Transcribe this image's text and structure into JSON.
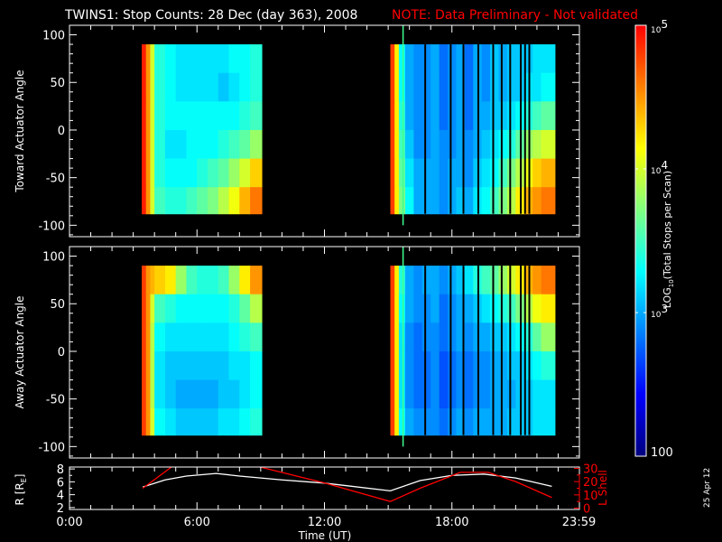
{
  "title": {
    "main": "TWINS1: Stop Counts: 28 Dec (day 363), 2008",
    "note": "NOTE: Data Preliminary - Not validated",
    "note_color": "#ff0000"
  },
  "date_stamp": "25 Apr 12",
  "chart_data": [
    {
      "type": "heatmap",
      "ylabel": "Toward Actuator Angle",
      "xlim": [
        0,
        24
      ],
      "ylim": [
        -112,
        110
      ],
      "yticks": [
        -100,
        -50,
        0,
        50,
        100
      ],
      "angle_edges": [
        90,
        60,
        30,
        0,
        -30,
        -60,
        -88
      ],
      "blocks": [
        {
          "time_edges": [
            3.4,
            3.6,
            3.8,
            4.0,
            4.5,
            5.0,
            5.5,
            6.0,
            6.5,
            7.0,
            7.5,
            8.0,
            8.5,
            9.05
          ],
          "log10_counts": [
            [
              4.9,
              4.5,
              4.0,
              3.4,
              3.3,
              3.2,
              3.2,
              3.2,
              3.2,
              3.2,
              3.3,
              3.3,
              3.4
            ],
            [
              4.9,
              4.5,
              4.0,
              3.4,
              3.3,
              3.2,
              3.2,
              3.2,
              3.2,
              3.1,
              3.2,
              3.3,
              3.4
            ],
            [
              4.9,
              4.5,
              4.0,
              3.4,
              3.3,
              3.3,
              3.3,
              3.3,
              3.3,
              3.3,
              3.3,
              3.4,
              3.5
            ],
            [
              4.9,
              4.5,
              4.0,
              3.4,
              3.2,
              3.2,
              3.3,
              3.3,
              3.3,
              3.4,
              3.5,
              3.6,
              3.8
            ],
            [
              4.9,
              4.5,
              4.0,
              3.4,
              3.3,
              3.3,
              3.3,
              3.4,
              3.5,
              3.6,
              3.8,
              4.0,
              4.3
            ],
            [
              4.9,
              4.5,
              4.0,
              3.5,
              3.4,
              3.4,
              3.5,
              3.6,
              3.7,
              3.9,
              4.1,
              4.4,
              4.6
            ]
          ]
        },
        {
          "time_edges": [
            15.1,
            15.3,
            15.5,
            15.8,
            16.2,
            16.6,
            17.0,
            17.4,
            17.8,
            18.2,
            18.6,
            19.0,
            19.4,
            19.8,
            20.2,
            20.6,
            21.0,
            21.4,
            21.8,
            22.2,
            22.85
          ],
          "log10_counts": [
            [
              4.8,
              4.2,
              3.3,
              3.0,
              2.9,
              2.9,
              3.0,
              2.8,
              2.9,
              3.0,
              2.8,
              3.0,
              2.9,
              3.1,
              3.0,
              3.1,
              3.1,
              3.1,
              3.2,
              3.2
            ],
            [
              4.8,
              4.2,
              3.3,
              3.0,
              2.9,
              2.9,
              3.0,
              2.8,
              2.9,
              3.0,
              2.8,
              3.0,
              2.9,
              3.1,
              3.0,
              3.1,
              3.1,
              3.2,
              3.2,
              3.3
            ],
            [
              4.8,
              4.2,
              3.4,
              3.0,
              2.9,
              2.9,
              3.0,
              2.8,
              2.9,
              3.0,
              2.8,
              3.0,
              3.0,
              3.1,
              3.1,
              3.2,
              3.3,
              3.4,
              3.5,
              3.6
            ],
            [
              4.8,
              4.2,
              3.5,
              3.1,
              2.9,
              2.9,
              3.0,
              2.9,
              2.9,
              3.0,
              2.9,
              3.0,
              3.1,
              3.2,
              3.3,
              3.4,
              3.6,
              3.8,
              3.9,
              4.0
            ],
            [
              4.8,
              4.2,
              3.6,
              3.2,
              3.0,
              3.0,
              3.0,
              2.9,
              3.0,
              3.0,
              2.9,
              3.1,
              3.2,
              3.3,
              3.5,
              3.7,
              3.9,
              4.1,
              4.3,
              4.4
            ],
            [
              4.8,
              4.2,
              3.7,
              3.3,
              3.0,
              3.0,
              3.0,
              2.9,
              3.0,
              3.1,
              3.0,
              3.2,
              3.3,
              3.5,
              3.7,
              3.9,
              4.2,
              4.4,
              4.5,
              4.6
            ]
          ]
        }
      ],
      "data_gaps_hours": [
        16.7,
        17.9,
        18.5,
        19.2,
        19.9,
        20.3,
        20.7,
        21.2,
        21.4,
        21.6
      ],
      "highlight_line_hours": 15.7
    },
    {
      "type": "heatmap",
      "ylabel": "Away Actuator Angle",
      "xlim": [
        0,
        24
      ],
      "ylim": [
        -112,
        110
      ],
      "yticks": [
        -100,
        -50,
        0,
        50,
        100
      ],
      "angle_edges": [
        90,
        60,
        30,
        0,
        -30,
        -60,
        -88
      ],
      "blocks": [
        {
          "time_edges": [
            3.4,
            3.6,
            3.8,
            4.0,
            4.5,
            5.0,
            5.5,
            6.0,
            6.5,
            7.0,
            7.5,
            8.0,
            8.5,
            9.05
          ],
          "log10_counts": [
            [
              4.8,
              4.5,
              4.4,
              4.3,
              4.2,
              3.8,
              3.5,
              3.4,
              3.4,
              3.5,
              3.8,
              4.2,
              4.5
            ],
            [
              4.8,
              4.5,
              4.0,
              3.5,
              3.4,
              3.3,
              3.3,
              3.3,
              3.3,
              3.3,
              3.4,
              3.6,
              3.9
            ],
            [
              4.8,
              4.5,
              3.9,
              3.3,
              3.2,
              3.2,
              3.2,
              3.2,
              3.2,
              3.2,
              3.3,
              3.4,
              3.5
            ],
            [
              4.8,
              4.5,
              3.9,
              3.2,
              3.1,
              3.1,
              3.1,
              3.1,
              3.1,
              3.1,
              3.2,
              3.2,
              3.3
            ],
            [
              4.8,
              4.5,
              3.9,
              3.2,
              3.1,
              3.0,
              3.0,
              3.0,
              3.0,
              3.1,
              3.1,
              3.2,
              3.3
            ],
            [
              4.8,
              4.5,
              4.0,
              3.3,
              3.2,
              3.1,
              3.1,
              3.1,
              3.1,
              3.2,
              3.2,
              3.3,
              3.4
            ]
          ]
        },
        {
          "time_edges": [
            15.1,
            15.3,
            15.5,
            15.8,
            16.2,
            16.6,
            17.0,
            17.4,
            17.8,
            18.2,
            18.6,
            19.0,
            19.4,
            19.8,
            20.2,
            20.6,
            21.0,
            21.4,
            21.8,
            22.2,
            22.85
          ],
          "log10_counts": [
            [
              4.8,
              4.2,
              3.4,
              3.0,
              2.9,
              3.0,
              3.0,
              2.9,
              3.0,
              3.1,
              3.2,
              3.4,
              3.5,
              3.6,
              3.8,
              4.0,
              4.2,
              4.4,
              4.5,
              4.6
            ],
            [
              4.8,
              4.2,
              3.3,
              3.0,
              2.9,
              2.9,
              3.0,
              2.8,
              2.9,
              3.0,
              3.0,
              3.1,
              3.2,
              3.3,
              3.4,
              3.5,
              3.7,
              3.9,
              4.1,
              4.2
            ],
            [
              4.8,
              4.2,
              3.2,
              2.9,
              2.8,
              2.9,
              2.9,
              2.8,
              2.9,
              3.0,
              2.9,
              3.0,
              3.0,
              3.1,
              3.1,
              3.2,
              3.3,
              3.4,
              3.6,
              3.8
            ],
            [
              4.8,
              4.2,
              3.2,
              2.9,
              2.8,
              2.8,
              2.9,
              2.7,
              2.8,
              2.9,
              2.8,
              2.9,
              2.9,
              3.0,
              3.0,
              3.1,
              3.1,
              3.2,
              3.3,
              3.4
            ],
            [
              4.8,
              4.2,
              3.2,
              2.9,
              2.8,
              2.8,
              2.9,
              2.7,
              2.8,
              2.9,
              2.8,
              2.9,
              2.9,
              3.0,
              3.0,
              3.0,
              3.1,
              3.1,
              3.2,
              3.2
            ],
            [
              4.8,
              4.2,
              3.3,
              3.0,
              2.9,
              2.9,
              2.9,
              2.8,
              2.9,
              3.0,
              2.9,
              3.0,
              3.0,
              3.0,
              3.0,
              3.1,
              3.1,
              3.1,
              3.2,
              3.2
            ]
          ]
        }
      ],
      "data_gaps_hours": [
        16.7,
        17.9,
        18.5,
        19.2,
        19.9,
        20.3,
        20.7,
        21.2,
        21.4,
        21.6
      ],
      "highlight_line_hours": 15.7
    },
    {
      "type": "line",
      "xlabel": "Time (UT)",
      "xticks": [
        "0:00",
        "6:00",
        "12:00",
        "18:00",
        "23:59"
      ],
      "xlim": [
        0,
        24
      ],
      "ylabel_left": "R [R",
      "ylabel_left_sub": "E",
      "ylabel_left_close": "]",
      "ylabel_right": "L Shell",
      "ylim_left": [
        1.7,
        8.3
      ],
      "yticks_left": [
        2,
        4,
        6,
        8
      ],
      "ylim_right": [
        -1,
        31
      ],
      "yticks_right": [
        0,
        10,
        20,
        30
      ],
      "series": [
        {
          "axis": "left",
          "color": "#ffffff",
          "x": [
            3.45,
            4.5,
            5.5,
            6.9,
            8.0,
            10.0,
            12.0,
            15.1,
            16.5,
            18.0,
            19.5,
            21.0,
            22.7
          ],
          "y": [
            5.2,
            6.3,
            6.9,
            7.3,
            6.9,
            6.3,
            5.8,
            4.6,
            6.2,
            7.0,
            7.2,
            6.6,
            5.3
          ]
        },
        {
          "axis": "right",
          "color": "#ff0000",
          "x": [
            3.45,
            4.8
          ],
          "y": [
            15,
            31
          ]
        },
        {
          "axis": "right",
          "color": "#ff0000",
          "x": [
            8.97,
            12.0,
            15.1,
            16.5,
            18.4,
            19.7,
            21.0,
            22.7
          ],
          "y": [
            31,
            19,
            5,
            15,
            27,
            27,
            20,
            8
          ]
        }
      ]
    }
  ],
  "colorbar": {
    "label_prefix": "LOG",
    "label_sub": "10",
    "label_suffix": "(Total Stops per Scan)",
    "range_log10": [
      2,
      5
    ],
    "ticks": [
      {
        "base": "10",
        "exp": "5",
        "value": 5
      },
      {
        "base": "10",
        "exp": "4",
        "value": 4
      },
      {
        "base": "10",
        "exp": "3",
        "value": 3
      },
      {
        "base": "100",
        "exp": "",
        "value": 2
      }
    ],
    "colors": [
      "#00007f",
      "#0000ff",
      "#0080ff",
      "#00ffff",
      "#80ff80",
      "#ffff00",
      "#ff8000",
      "#ff0000"
    ]
  }
}
